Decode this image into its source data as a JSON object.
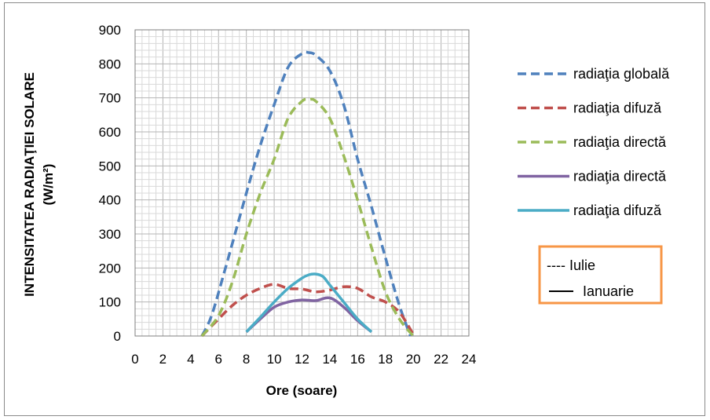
{
  "chart_data": {
    "type": "line",
    "xlabel": "Ore (soare)",
    "ylabel_line1": "INTENSITATEA RADIAŢIEI SOLARE",
    "ylabel_line2": "(W/m²)",
    "xlim": [
      0,
      24
    ],
    "ylim": [
      0,
      900
    ],
    "x_ticks": [
      "0",
      "2",
      "4",
      "6",
      "8",
      "10",
      "12",
      "14",
      "16",
      "18",
      "20",
      "22",
      "24"
    ],
    "y_ticks": [
      "0",
      "100",
      "200",
      "300",
      "400",
      "500",
      "600",
      "700",
      "800",
      "900"
    ],
    "grid": "on",
    "legend_placement": "right",
    "series": [
      {
        "name": "radiaţia globală",
        "color": "#4F81BD",
        "style": "dashed",
        "points": [
          [
            4.8,
            0
          ],
          [
            5.5,
            60
          ],
          [
            6.5,
            200
          ],
          [
            8,
            420
          ],
          [
            9,
            560
          ],
          [
            10,
            680
          ],
          [
            11,
            790
          ],
          [
            12,
            830
          ],
          [
            12.5,
            833
          ],
          [
            13,
            825
          ],
          [
            14,
            780
          ],
          [
            15,
            680
          ],
          [
            16,
            520
          ],
          [
            17,
            380
          ],
          [
            18,
            230
          ],
          [
            19,
            90
          ],
          [
            19.8,
            0
          ]
        ]
      },
      {
        "name": "radiaţia difuză",
        "color": "#C0504D",
        "style": "dashed",
        "points": [
          [
            4.8,
            0
          ],
          [
            6,
            50
          ],
          [
            7,
            90
          ],
          [
            8,
            120
          ],
          [
            9,
            140
          ],
          [
            10,
            152
          ],
          [
            11,
            140
          ],
          [
            12,
            138
          ],
          [
            13,
            130
          ],
          [
            14,
            135
          ],
          [
            15,
            145
          ],
          [
            16,
            140
          ],
          [
            17,
            115
          ],
          [
            18,
            100
          ],
          [
            19,
            70
          ],
          [
            20,
            5
          ]
        ]
      },
      {
        "name": "radiaţia directă",
        "color": "#9BBB59",
        "style": "dashed",
        "points": [
          [
            4.8,
            0
          ],
          [
            6,
            60
          ],
          [
            7,
            160
          ],
          [
            8,
            300
          ],
          [
            9,
            420
          ],
          [
            10,
            520
          ],
          [
            11,
            640
          ],
          [
            12,
            690
          ],
          [
            12.5,
            695
          ],
          [
            13,
            690
          ],
          [
            14,
            640
          ],
          [
            15,
            530
          ],
          [
            16,
            400
          ],
          [
            17,
            260
          ],
          [
            18,
            130
          ],
          [
            19,
            50
          ],
          [
            20,
            0
          ]
        ]
      },
      {
        "name": "radiaţia directă",
        "color": "#8064A2",
        "style": "solid",
        "points": [
          [
            8,
            12
          ],
          [
            9,
            50
          ],
          [
            10,
            85
          ],
          [
            11,
            100
          ],
          [
            12,
            106
          ],
          [
            13,
            104
          ],
          [
            14,
            112
          ],
          [
            15,
            85
          ],
          [
            16,
            45
          ],
          [
            17,
            12
          ]
        ]
      },
      {
        "name": "radiaţia difuză",
        "color": "#4BACC6",
        "style": "solid",
        "points": [
          [
            8,
            12
          ],
          [
            9,
            55
          ],
          [
            10,
            100
          ],
          [
            11,
            140
          ],
          [
            12,
            170
          ],
          [
            12.5,
            180
          ],
          [
            13,
            182
          ],
          [
            13.5,
            175
          ],
          [
            14,
            150
          ],
          [
            15,
            100
          ],
          [
            16,
            50
          ],
          [
            17,
            12
          ]
        ]
      }
    ],
    "note": {
      "border_color": "#F79646",
      "items": [
        "---- Iulie",
        "Ianuarie"
      ]
    }
  }
}
